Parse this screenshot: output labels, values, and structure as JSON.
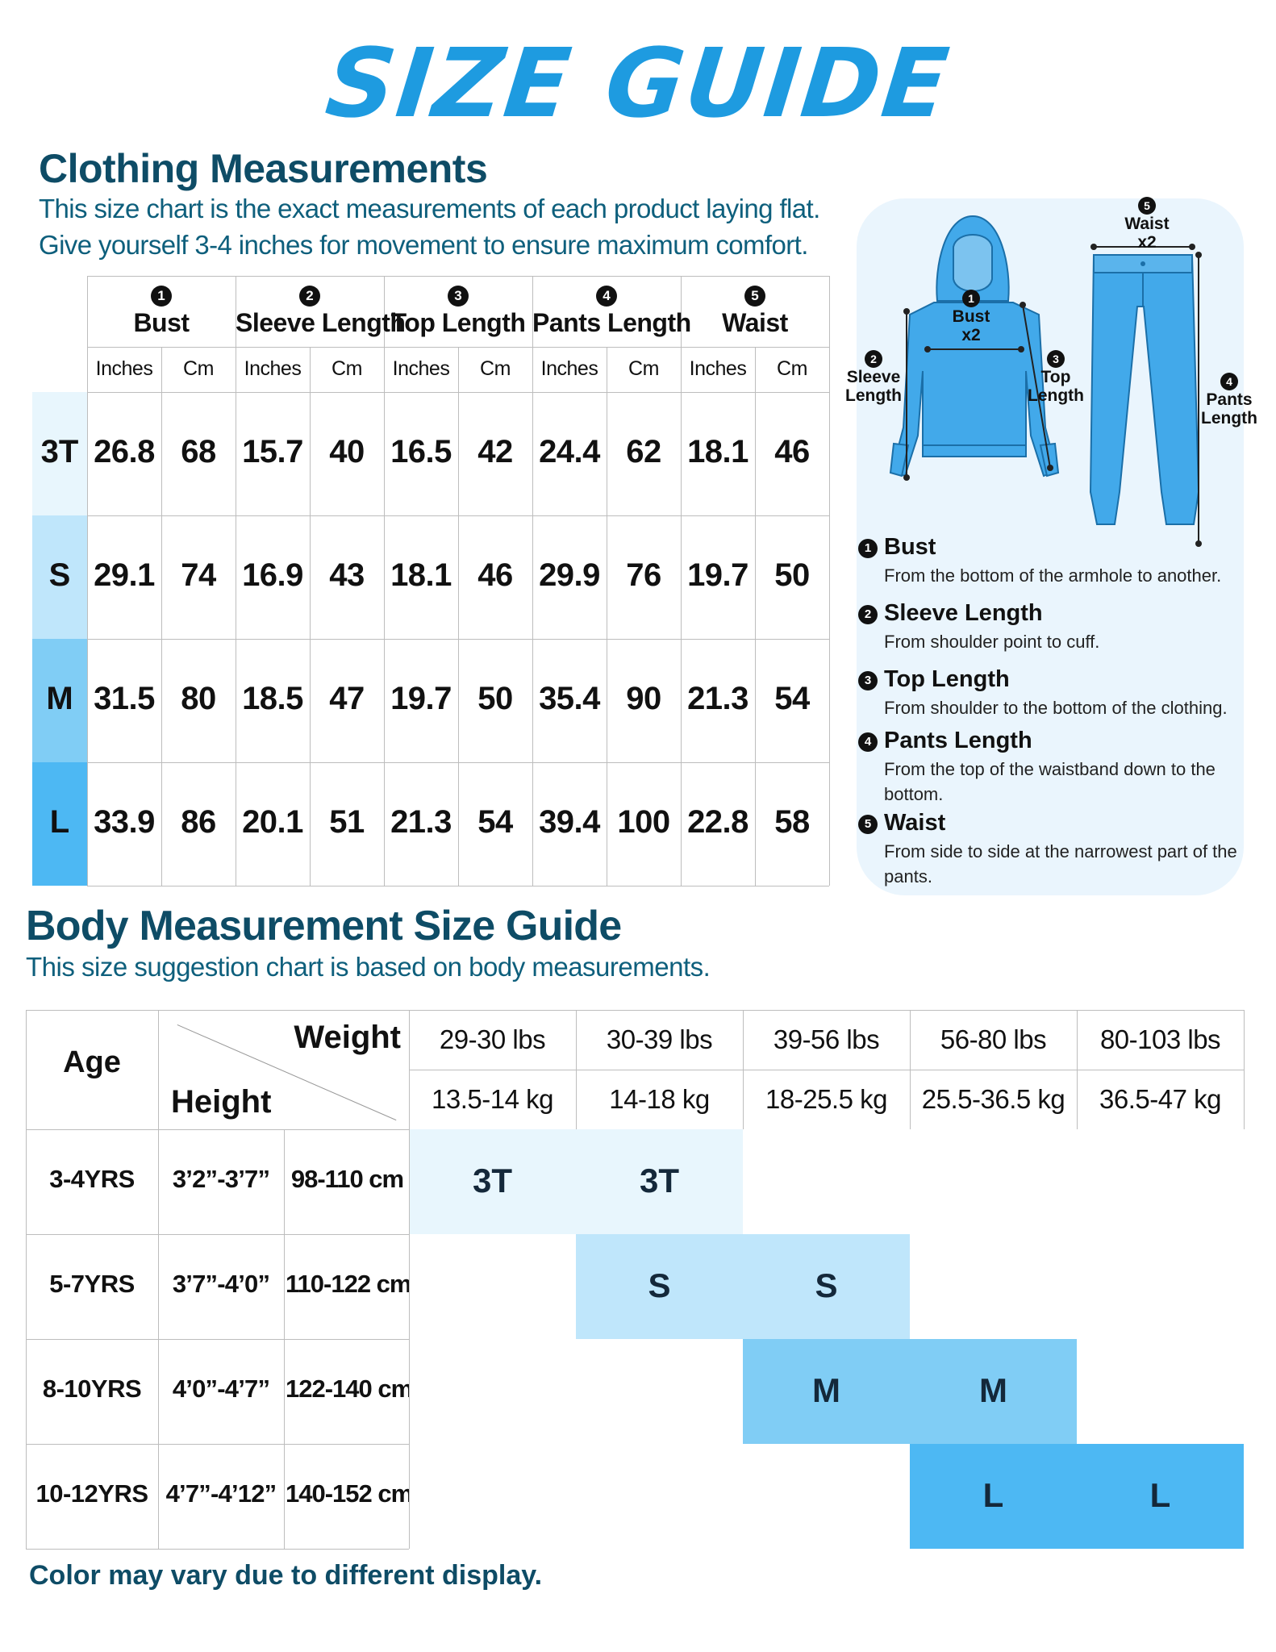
{
  "title": "SIZE GUIDE",
  "clothing": {
    "heading": "Clothing Measurements",
    "desc_line1": "This size chart is the exact measurements of each product laying flat.",
    "desc_line2": "Give yourself 3-4 inches for movement to ensure maximum comfort.",
    "columns": [
      {
        "num": "1",
        "name": "Bust"
      },
      {
        "num": "2",
        "name": "Sleeve Length"
      },
      {
        "num": "3",
        "name": "Top Length"
      },
      {
        "num": "4",
        "name": "Pants Length"
      },
      {
        "num": "5",
        "name": "Waist"
      }
    ],
    "unit_inches": "Inches",
    "unit_cm": "Cm",
    "rows": [
      {
        "size": "3T",
        "values": [
          "26.8",
          "68",
          "15.7",
          "40",
          "16.5",
          "42",
          "24.4",
          "62",
          "18.1",
          "46"
        ]
      },
      {
        "size": "S",
        "values": [
          "29.1",
          "74",
          "16.9",
          "43",
          "18.1",
          "46",
          "29.9",
          "76",
          "19.7",
          "50"
        ]
      },
      {
        "size": "M",
        "values": [
          "31.5",
          "80",
          "18.5",
          "47",
          "19.7",
          "50",
          "35.4",
          "90",
          "21.3",
          "54"
        ]
      },
      {
        "size": "L",
        "values": [
          "33.9",
          "86",
          "20.1",
          "51",
          "21.3",
          "54",
          "39.4",
          "100",
          "22.8",
          "58"
        ]
      }
    ],
    "size_colors": [
      "#e8f6fd",
      "#bfe6fb",
      "#80cdf5",
      "#4db8f3"
    ]
  },
  "diagram": {
    "bust_label": "Bust",
    "bust_mult": "x2",
    "sleeve_label_1": "Sleeve",
    "sleeve_label_2": "Length",
    "top_label_1": "Top",
    "top_label_2": "Length",
    "waist_label": "Waist",
    "waist_mult": "x2",
    "pants_label_1": "Pants",
    "pants_label_2": "Length",
    "garment_color": "#42a9ea",
    "definitions": [
      {
        "num": "1",
        "title": "Bust",
        "desc": "From the bottom of the armhole to another."
      },
      {
        "num": "2",
        "title": "Sleeve Length",
        "desc": "From shoulder point to cuff."
      },
      {
        "num": "3",
        "title": "Top Length",
        "desc": "From shoulder to the bottom of the clothing."
      },
      {
        "num": "4",
        "title": "Pants Length",
        "desc": "From the top of the waistband down to the bottom."
      },
      {
        "num": "5",
        "title": "Waist",
        "desc": "From side to side at the narrowest part of the pants."
      }
    ]
  },
  "body": {
    "heading": "Body Measurement Size Guide",
    "desc": "This size suggestion chart is based on body measurements.",
    "age_header": "Age",
    "weight_header": "Weight",
    "height_header": "Height",
    "weights_lbs": [
      "29-30 lbs",
      "30-39 lbs",
      "39-56 lbs",
      "56-80 lbs",
      "80-103 lbs"
    ],
    "weights_kg": [
      "13.5-14 kg",
      "14-18 kg",
      "18-25.5 kg",
      "25.5-36.5 kg",
      "36.5-47 kg"
    ],
    "rows": [
      {
        "age": "3-4YRS",
        "height_ft": "3’2”-3’7”",
        "height_cm": "98-110 cm",
        "sizes": [
          "3T",
          "3T"
        ]
      },
      {
        "age": "5-7YRS",
        "height_ft": "3’7”-4’0”",
        "height_cm": "110-122 cm",
        "sizes": [
          "S",
          "S"
        ]
      },
      {
        "age": "8-10YRS",
        "height_ft": "4’0”-4’7”",
        "height_cm": "122-140 cm",
        "sizes": [
          "M",
          "M"
        ]
      },
      {
        "age": "10-12YRS",
        "height_ft": "4’7”-4’12”",
        "height_cm": "140-152 cm",
        "sizes": [
          "L",
          "L"
        ]
      }
    ]
  },
  "footer": "Color may vary due to different display."
}
